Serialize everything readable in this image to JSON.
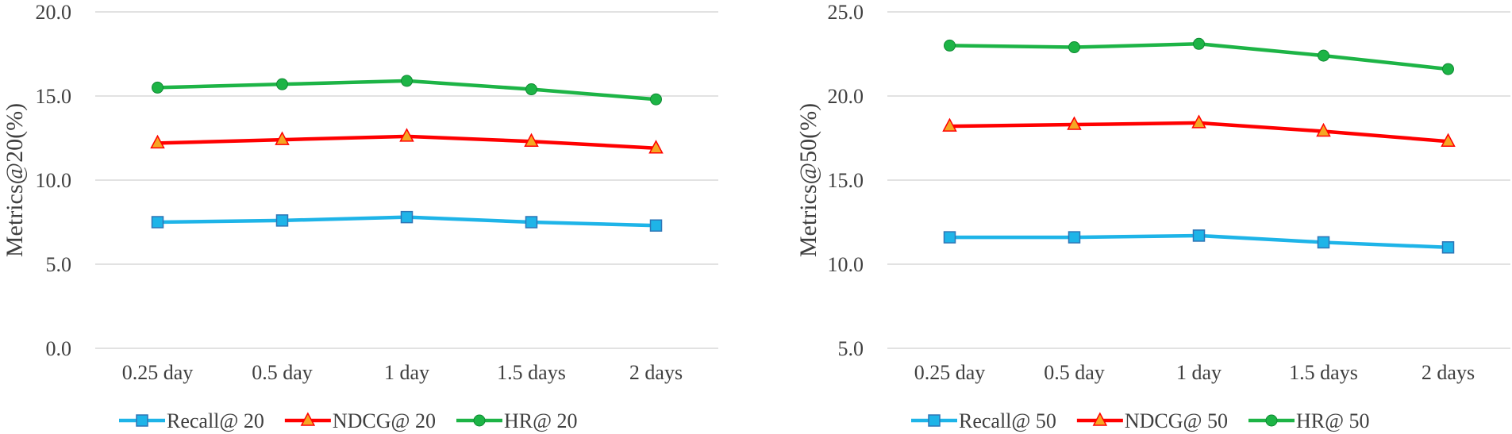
{
  "chart_data": [
    {
      "type": "line",
      "categories": [
        "0.25 day",
        "0.5 day",
        "1 day",
        "1.5 days",
        "2 days"
      ],
      "ylabel": "Metrics@20(%)",
      "ylim": [
        0,
        20
      ],
      "yticks": [
        "0.0",
        "5.0",
        "10.0",
        "15.0",
        "20.0"
      ],
      "grid": true,
      "legend_position": "bottom",
      "series": [
        {
          "name": "Recall@ 20",
          "values": [
            7.5,
            7.6,
            7.8,
            7.5,
            7.3
          ],
          "color": "#1eb4e8",
          "marker": "square"
        },
        {
          "name": "NDCG@ 20",
          "values": [
            12.2,
            12.4,
            12.6,
            12.3,
            11.9
          ],
          "color": "#ff0000",
          "marker": "triangle"
        },
        {
          "name": "HR@ 20",
          "values": [
            15.5,
            15.7,
            15.9,
            15.4,
            14.8
          ],
          "color": "#1db446",
          "marker": "circle"
        }
      ]
    },
    {
      "type": "line",
      "categories": [
        "0.25 day",
        "0.5 day",
        "1 day",
        "1.5 days",
        "2 days"
      ],
      "ylabel": "Metrics@50(%)",
      "ylim": [
        5,
        25
      ],
      "yticks": [
        "5.0",
        "10.0",
        "15.0",
        "20.0",
        "25.0"
      ],
      "grid": true,
      "legend_position": "bottom",
      "series": [
        {
          "name": "Recall@ 50",
          "values": [
            11.6,
            11.6,
            11.7,
            11.3,
            11.0
          ],
          "color": "#1eb4e8",
          "marker": "square"
        },
        {
          "name": "NDCG@ 50",
          "values": [
            18.2,
            18.3,
            18.4,
            17.9,
            17.3
          ],
          "color": "#ff0000",
          "marker": "triangle"
        },
        {
          "name": "HR@ 50",
          "values": [
            23.0,
            22.9,
            23.1,
            22.4,
            21.6
          ],
          "color": "#1db446",
          "marker": "circle"
        }
      ]
    }
  ]
}
